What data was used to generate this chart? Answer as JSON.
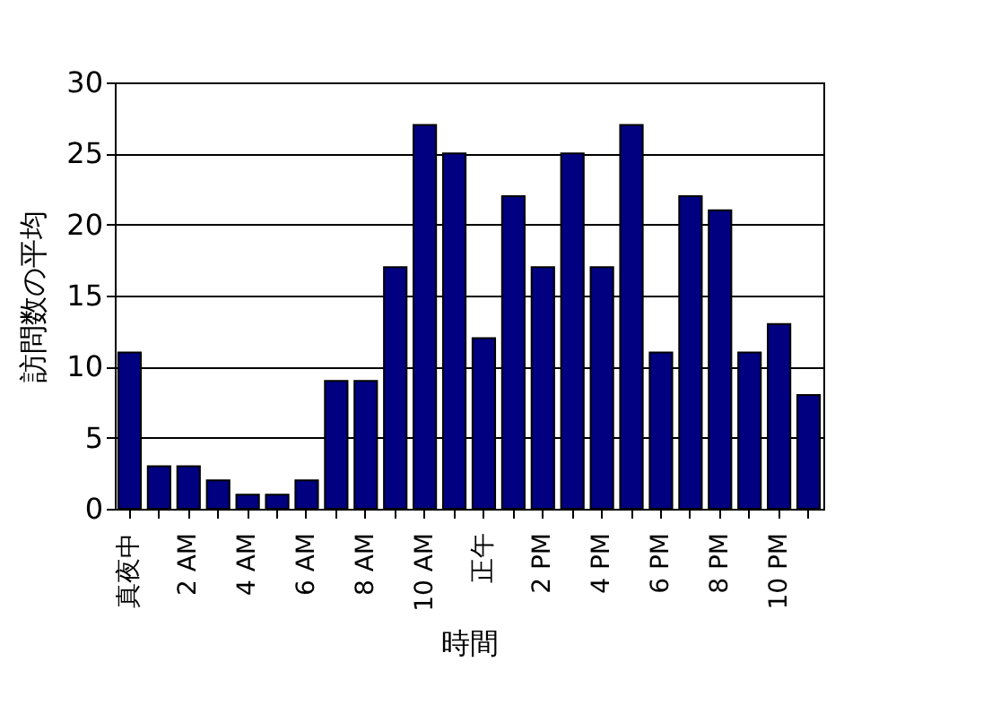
{
  "chart_data": {
    "type": "bar",
    "xlabel": "時間",
    "ylabel": "訪問数の平均",
    "categories": [
      "真夜中",
      null,
      "2 AM",
      null,
      "4 AM",
      null,
      "6 AM",
      null,
      "8 AM",
      null,
      "10 AM",
      null,
      "正午",
      null,
      "2 PM",
      null,
      "4 PM",
      null,
      "6 PM",
      null,
      "8 PM",
      null,
      "10 PM",
      null
    ],
    "values": [
      11,
      3,
      3,
      2,
      1,
      1,
      2,
      9,
      9,
      17,
      27,
      25,
      12,
      22,
      17,
      25,
      17,
      27,
      11,
      22,
      21,
      11,
      13,
      8
    ],
    "color": "#000080",
    "ylim": [
      0,
      30
    ],
    "yticks": [
      0,
      5,
      10,
      15,
      20,
      25,
      30
    ],
    "grid": "y"
  }
}
